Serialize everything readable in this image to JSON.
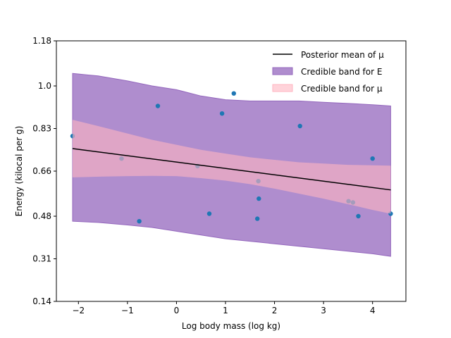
{
  "chart_data": {
    "type": "scatter",
    "title": "",
    "xlabel": "Log body mass (log kg)",
    "ylabel": "Energy (kilocal per g)",
    "xlim": [
      -2.45,
      4.68
    ],
    "ylim": [
      0.14,
      1.18
    ],
    "xticks": [
      -2,
      -1,
      0,
      1,
      2,
      3,
      4
    ],
    "yticks": [
      0.14,
      0.31,
      0.48,
      0.66,
      0.83,
      1.0,
      1.18
    ],
    "ytick_labels": [
      "0.14",
      "0.31",
      "0.48",
      "0.66",
      "0.83",
      "1.0",
      "1.18"
    ],
    "grid": false,
    "legend_position": "top-right",
    "colors": {
      "points": "#1f77b4",
      "mean_line": "#000000",
      "band_E": "#9467bd",
      "band_mu": "#ffb6c1"
    },
    "series": [
      {
        "name": "Posterior mean of μ",
        "kind": "line",
        "x": [
          -2.12,
          4.37
        ],
        "y": [
          0.75,
          0.585
        ]
      },
      {
        "name": "Credible band for E",
        "kind": "band",
        "x": [
          -2.12,
          -1.6,
          -1.0,
          -0.5,
          0.0,
          0.5,
          1.0,
          1.5,
          2.0,
          2.5,
          3.0,
          3.5,
          4.0,
          4.37
        ],
        "upper": [
          1.05,
          1.04,
          1.02,
          1.0,
          0.985,
          0.96,
          0.945,
          0.94,
          0.94,
          0.94,
          0.935,
          0.93,
          0.925,
          0.92
        ],
        "lower": [
          0.46,
          0.455,
          0.445,
          0.435,
          0.42,
          0.405,
          0.39,
          0.38,
          0.37,
          0.36,
          0.35,
          0.34,
          0.33,
          0.32
        ]
      },
      {
        "name": "Credible band for μ",
        "kind": "band",
        "x": [
          -2.12,
          -1.5,
          -1.0,
          -0.5,
          0.0,
          0.5,
          1.0,
          1.5,
          2.0,
          2.5,
          3.0,
          3.5,
          4.0,
          4.37
        ],
        "upper": [
          0.865,
          0.835,
          0.81,
          0.785,
          0.765,
          0.745,
          0.73,
          0.715,
          0.705,
          0.695,
          0.69,
          0.685,
          0.683,
          0.682
        ],
        "lower": [
          0.635,
          0.638,
          0.64,
          0.641,
          0.64,
          0.632,
          0.622,
          0.608,
          0.59,
          0.57,
          0.55,
          0.528,
          0.505,
          0.49
        ]
      },
      {
        "name": "",
        "kind": "points",
        "x": [
          -2.12,
          -1.12,
          -0.76,
          -0.38,
          0.43,
          0.67,
          0.93,
          1.17,
          1.65,
          1.67,
          1.68,
          2.52,
          3.51,
          3.6,
          3.71,
          4.0,
          4.37
        ],
        "y": [
          0.8,
          0.71,
          0.46,
          0.92,
          0.68,
          0.49,
          0.89,
          0.97,
          0.47,
          0.62,
          0.55,
          0.84,
          0.54,
          0.535,
          0.48,
          0.71,
          0.49
        ]
      }
    ]
  }
}
